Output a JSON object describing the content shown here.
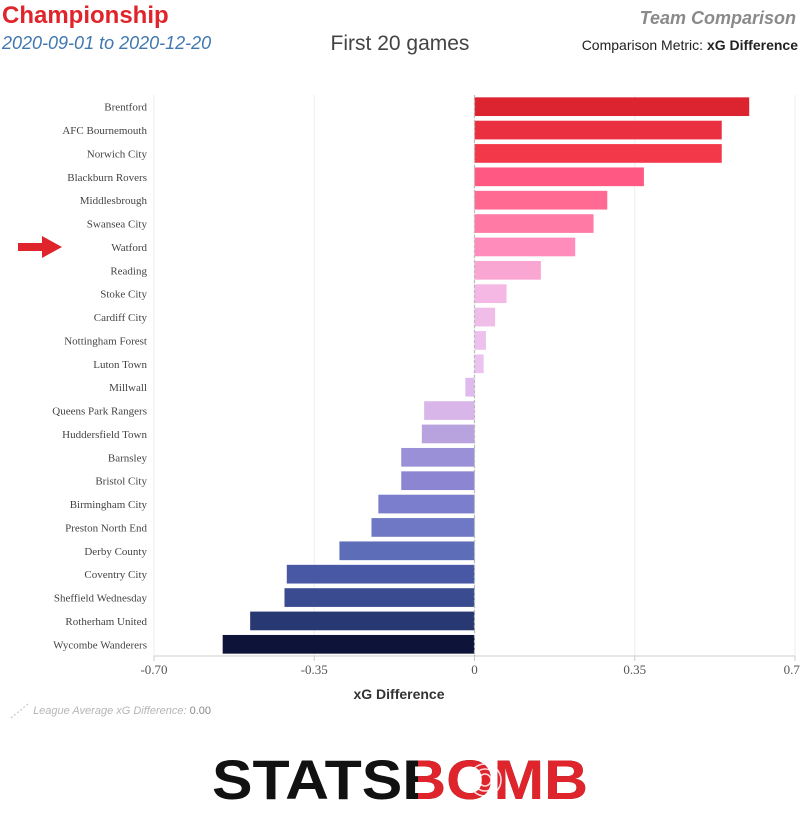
{
  "header": {
    "league": "Championship",
    "date_range": "2020-09-01 to 2020-12-20",
    "subtitle": "First 20 games",
    "mode": "Team Comparison",
    "metric_label": "Comparison Metric: ",
    "metric_name": "xG Difference"
  },
  "footer": {
    "avg_label": "League Average xG Difference: ",
    "avg_value": "0.00",
    "logo_text": "STATSBOMB"
  },
  "highlight": {
    "team": "Watford",
    "color": "#e0242b"
  },
  "chart_data": {
    "type": "bar",
    "orientation": "horizontal",
    "xlabel": "xG Difference",
    "xlim": [
      -0.7,
      0.7
    ],
    "xticks": [
      "-0.70",
      "-0.35",
      "0",
      "0.35",
      "0.70"
    ],
    "xtick_values": [
      -0.7,
      -0.35,
      0,
      0.35,
      0.7
    ],
    "reference_line": 0.0,
    "categories": [
      "Brentford",
      "AFC Bournemouth",
      "Norwich City",
      "Blackburn Rovers",
      "Middlesbrough",
      "Swansea City",
      "Watford",
      "Reading",
      "Stoke City",
      "Cardiff City",
      "Nottingham Forest",
      "Luton Town",
      "Millwall",
      "Queens Park Rangers",
      "Huddersfield Town",
      "Barnsley",
      "Bristol City",
      "Birmingham City",
      "Preston North End",
      "Derby County",
      "Coventry City",
      "Sheffield Wednesday",
      "Rotherham United",
      "Wycombe Wanderers"
    ],
    "values": [
      0.6,
      0.54,
      0.54,
      0.37,
      0.29,
      0.26,
      0.22,
      0.145,
      0.07,
      0.045,
      0.025,
      0.02,
      -0.02,
      -0.11,
      -0.115,
      -0.16,
      -0.16,
      -0.21,
      -0.225,
      -0.295,
      -0.41,
      -0.415,
      -0.49,
      -0.55
    ],
    "colors": [
      "#dc2430",
      "#ea3040",
      "#f23849",
      "#ff5882",
      "#ff6a93",
      "#ff7aa4",
      "#ff8cba",
      "#faa6d2",
      "#f5b7e4",
      "#f0bce8",
      "#eec0ee",
      "#ecc2ee",
      "#e0baee",
      "#d9b6ea",
      "#b9a3df",
      "#9a90d8",
      "#8c86d2",
      "#7b7ecc",
      "#6e78c4",
      "#5d6db7",
      "#4858a4",
      "#3a4b90",
      "#283873",
      "#0e1339"
    ]
  }
}
